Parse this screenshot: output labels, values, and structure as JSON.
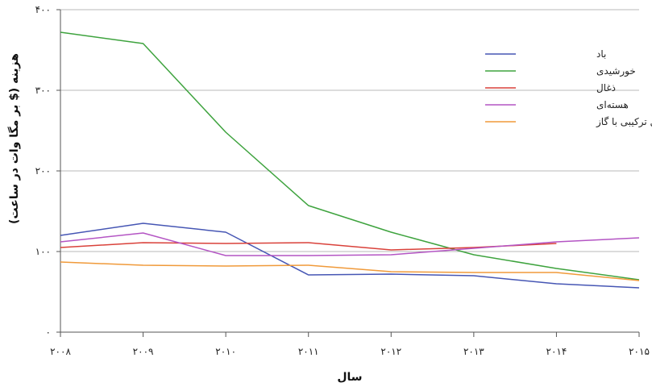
{
  "chart_data": {
    "type": "line",
    "xlabel": "سال",
    "ylabel": "هزینه ($ بر مگا وات در ساعت)",
    "x": [
      2008,
      2009,
      2010,
      2011,
      2012,
      2013,
      2014,
      2015
    ],
    "x_tick_labels": [
      "۲۰۰۸",
      "۲۰۰۹",
      "۲۰۱۰",
      "۲۰۱۱",
      "۲۰۱۲",
      "۲۰۱۳",
      "۲۰۱۴",
      "۲۰۱۵"
    ],
    "ylim": [
      0,
      400
    ],
    "y_ticks": [
      0,
      100,
      200,
      300,
      400
    ],
    "y_tick_labels": [
      "۰",
      "۱۰۰",
      "۲۰۰",
      "۳۰۰",
      "۴۰۰"
    ],
    "grid": true,
    "legend_position": "top-right",
    "series": [
      {
        "name": "باد",
        "color": "#4656b4",
        "x": [
          2008,
          2009,
          2010,
          2011,
          2012,
          2013,
          2014,
          2015
        ],
        "values": [
          120,
          135,
          124,
          71,
          72,
          70,
          60,
          55
        ]
      },
      {
        "name": "خورشیدی",
        "color": "#3ea33e",
        "x": [
          2008,
          2009,
          2010,
          2011,
          2012,
          2013,
          2014,
          2015
        ],
        "values": [
          372,
          358,
          248,
          157,
          124,
          96,
          79,
          65
        ]
      },
      {
        "name": "ذغال",
        "color": "#d9413a",
        "x": [
          2008,
          2009,
          2010,
          2011,
          2012,
          2013,
          2014
        ],
        "values": [
          105,
          111,
          110,
          111,
          102,
          105,
          110
        ]
      },
      {
        "name": "هسته‌ای",
        "color": "#b455c4",
        "x": [
          2008,
          2009,
          2010,
          2011,
          2012,
          2013,
          2014,
          2015
        ],
        "values": [
          112,
          123,
          95,
          95,
          96,
          104,
          112,
          117
        ]
      },
      {
        "name": "سیکل ترکیبی با گاز",
        "color": "#f09a3a",
        "x": [
          2008,
          2009,
          2010,
          2011,
          2012,
          2013,
          2014,
          2015
        ],
        "values": [
          87,
          83,
          82,
          83,
          75,
          74,
          74,
          64
        ]
      }
    ]
  }
}
